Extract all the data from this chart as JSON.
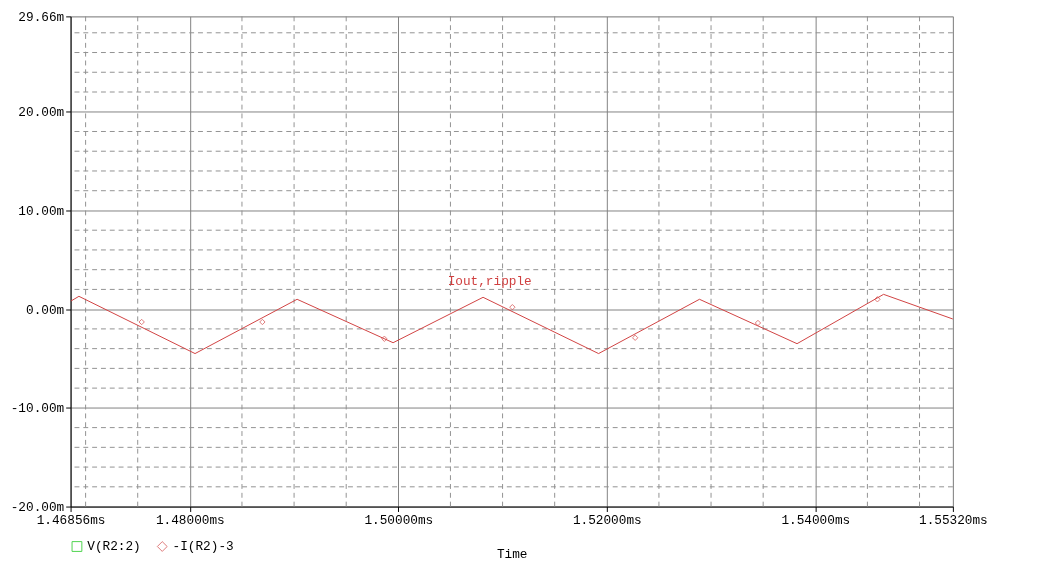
{
  "chart_data": {
    "type": "line",
    "xlabel": "Time",
    "xlim": [
      1.46856,
      1.5532
    ],
    "xticks": [
      {
        "value": 1.46856,
        "label": "1.46856ms"
      },
      {
        "value": 1.48,
        "label": "1.48000ms"
      },
      {
        "value": 1.5,
        "label": "1.50000ms"
      },
      {
        "value": 1.52,
        "label": "1.52000ms"
      },
      {
        "value": 1.54,
        "label": "1.54000ms"
      },
      {
        "value": 1.5532,
        "label": "1.55320ms"
      }
    ],
    "ylim": [
      -20,
      29.66
    ],
    "yticks": [
      {
        "value": -20,
        "label": "-20.00m"
      },
      {
        "value": -10,
        "label": "-10.00m"
      },
      {
        "value": 0,
        "label": "0.00m"
      },
      {
        "value": 10,
        "label": "10.00m"
      },
      {
        "value": 20,
        "label": "20.00m"
      },
      {
        "value": 29.66,
        "label": "29.66m"
      }
    ],
    "grid": true,
    "legend": "bottom left",
    "annotations": [
      "Iout,ripple"
    ],
    "series": [
      {
        "name": "V(R2:2)",
        "color": "#00c000",
        "marker": "square"
      },
      {
        "name": "-I(R2)-3",
        "color": "#d04040",
        "x": [
          1.46856,
          1.46936,
          1.4805,
          1.49029,
          1.4995,
          1.50813,
          1.51921,
          1.52889,
          1.53825,
          1.54655,
          1.5532
        ],
        "values": [
          0.8,
          1.3,
          -4.5,
          1.0,
          -3.4,
          1.2,
          -4.5,
          1.0,
          -3.5,
          1.5,
          -1.0
        ]
      },
      {
        "type": "scatter",
        "color": "#d04040",
        "marker": "diamond",
        "x": [
          1.47538,
          1.48696,
          1.49866,
          1.51094,
          1.52272,
          1.5345,
          1.54596
        ],
        "values": [
          -1.3,
          -1.3,
          -3.0,
          0.2,
          -2.9,
          -1.4,
          1.0
        ]
      }
    ]
  }
}
